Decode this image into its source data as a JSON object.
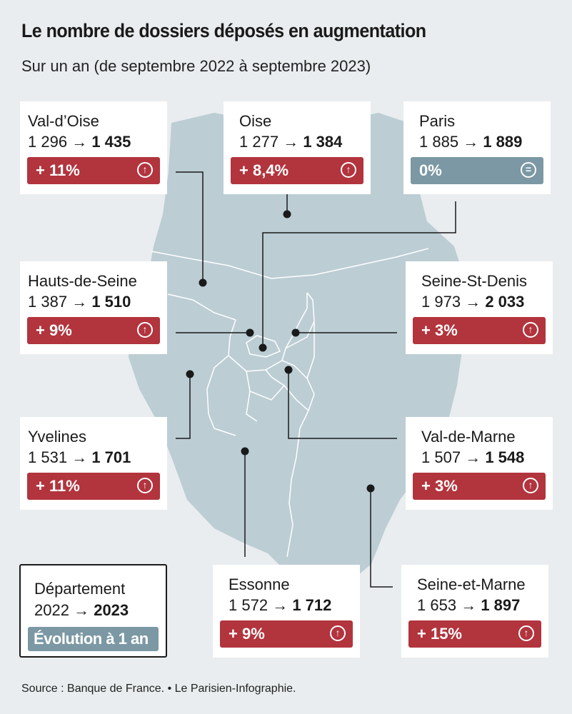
{
  "title": "Le nombre de dossiers déposés en augmentation",
  "subtitle": "Sur un an (de septembre 2022 à septembre 2023)",
  "colors": {
    "increase": "#b2343d",
    "stable": "#7b98a4",
    "map": "#bccdd4",
    "background": "#e9edef"
  },
  "departments": [
    {
      "id": "val-d-oise",
      "name": "Val-d’Oise",
      "v2022": "1 296",
      "v2023": "1 435",
      "arrow": "→",
      "change": "+ 11%",
      "trend": "up",
      "icon": "arrow-up-circle-icon"
    },
    {
      "id": "oise",
      "name": "Oise",
      "v2022": "1 277",
      "v2023": "1 384",
      "arrow": "→",
      "change": "+ 8,4%",
      "trend": "up",
      "icon": "arrow-up-circle-icon"
    },
    {
      "id": "paris",
      "name": "Paris",
      "v2022": "1 885",
      "v2023": "1 889",
      "arrow": "→",
      "change": "0%",
      "trend": "stable",
      "icon": "equals-circle-icon"
    },
    {
      "id": "hauts-de-seine",
      "name": "Hauts-de-Seine",
      "v2022": "1 387",
      "v2023": "1 510",
      "arrow": "→",
      "change": "+ 9%",
      "trend": "up",
      "icon": "arrow-up-circle-icon"
    },
    {
      "id": "seine-st-denis",
      "name": "Seine-St-Denis",
      "v2022": "1 973",
      "v2023": "2 033",
      "arrow": "→",
      "change": "+ 3%",
      "trend": "up",
      "icon": "arrow-up-circle-icon"
    },
    {
      "id": "yvelines",
      "name": "Yvelines",
      "v2022": "1 531",
      "v2023": "1 701",
      "arrow": "→",
      "change": "+ 11%",
      "trend": "up",
      "icon": "arrow-up-circle-icon"
    },
    {
      "id": "val-de-marne",
      "name": "Val-de-Marne",
      "v2022": "1 507",
      "v2023": "1 548",
      "arrow": "→",
      "change": "+ 3%",
      "trend": "up",
      "icon": "arrow-up-circle-icon"
    },
    {
      "id": "essonne",
      "name": "Essonne",
      "v2022": "1 572",
      "v2023": "1 712",
      "arrow": "→",
      "change": "+ 9%",
      "trend": "up",
      "icon": "arrow-up-circle-icon"
    },
    {
      "id": "seine-et-marne",
      "name": "Seine-et-Marne",
      "v2022": "1 653",
      "v2023": "1 897",
      "arrow": "→",
      "change": "+ 15%",
      "trend": "up",
      "icon": "arrow-up-circle-icon"
    }
  ],
  "legend": {
    "label": "Département",
    "year_from": "2022",
    "arrow": "→",
    "year_to": "2023",
    "badge": "Évolution à 1 an"
  },
  "source": "Source : Banque de France. • Le Parisien-Infographie."
}
